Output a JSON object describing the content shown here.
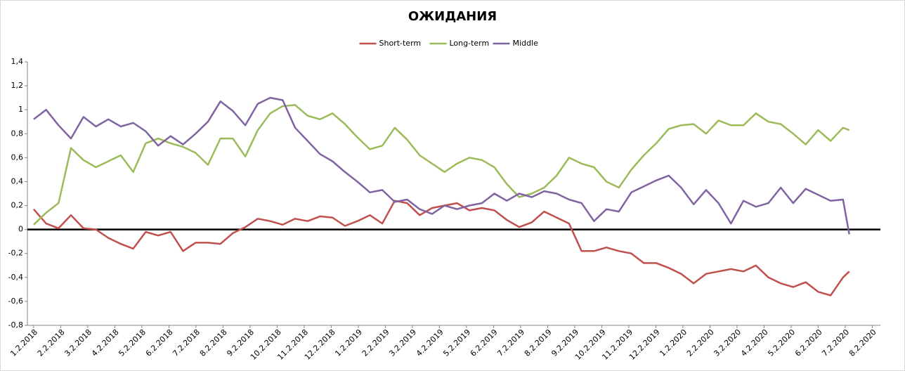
{
  "chart_data": {
    "type": "line",
    "title": "ОЖИДАНИЯ",
    "x": [
      0,
      2,
      4,
      6,
      8,
      10,
      12,
      14,
      16,
      18,
      20,
      22,
      24,
      26,
      28,
      30,
      32,
      34,
      36,
      38,
      40,
      42,
      44,
      46,
      48,
      50,
      52,
      54,
      56,
      58,
      60,
      62,
      64,
      66,
      68,
      70,
      72,
      74,
      76,
      78,
      80,
      82,
      84,
      86,
      88,
      90,
      92,
      94,
      96,
      98,
      100,
      102,
      104,
      106,
      108,
      110,
      112,
      114,
      116,
      118,
      120,
      122,
      124,
      126,
      128,
      130,
      131
    ],
    "series": [
      {
        "name": "Short-term",
        "color": "#c0504d",
        "values": [
          0.17,
          0.05,
          0.01,
          0.12,
          0.01,
          0.0,
          -0.07,
          -0.12,
          -0.16,
          -0.02,
          -0.05,
          -0.02,
          -0.18,
          -0.11,
          -0.11,
          -0.12,
          -0.03,
          0.02,
          0.09,
          0.07,
          0.04,
          0.09,
          0.07,
          0.11,
          0.1,
          0.03,
          0.07,
          0.12,
          0.05,
          0.24,
          0.22,
          0.12,
          0.18,
          0.2,
          0.22,
          0.16,
          0.18,
          0.16,
          0.08,
          0.02,
          0.06,
          0.15,
          0.1,
          0.05,
          -0.18,
          -0.18,
          -0.15,
          -0.18,
          -0.2,
          -0.28,
          -0.28,
          -0.32,
          -0.37,
          -0.45,
          -0.37,
          -0.35,
          -0.33,
          -0.35,
          -0.3,
          -0.4,
          -0.45,
          -0.48,
          -0.44,
          -0.52,
          -0.55,
          -0.4,
          -0.35
        ]
      },
      {
        "name": "Long-term",
        "color": "#9bbb59",
        "values": [
          0.04,
          0.14,
          0.22,
          0.68,
          0.58,
          0.52,
          0.57,
          0.62,
          0.48,
          0.72,
          0.76,
          0.72,
          0.69,
          0.64,
          0.54,
          0.76,
          0.76,
          0.61,
          0.83,
          0.97,
          1.03,
          1.04,
          0.95,
          0.92,
          0.97,
          0.88,
          0.77,
          0.67,
          0.7,
          0.85,
          0.75,
          0.62,
          0.55,
          0.48,
          0.55,
          0.6,
          0.58,
          0.52,
          0.38,
          0.27,
          0.3,
          0.35,
          0.45,
          0.6,
          0.55,
          0.52,
          0.4,
          0.35,
          0.5,
          0.62,
          0.72,
          0.84,
          0.87,
          0.88,
          0.8,
          0.91,
          0.87,
          0.87,
          0.97,
          0.9,
          0.88,
          0.8,
          0.71,
          0.83,
          0.74,
          0.85,
          0.83
        ]
      },
      {
        "name": "Middle",
        "color": "#8064a2",
        "values": [
          0.92,
          1.0,
          0.87,
          0.76,
          0.94,
          0.86,
          0.92,
          0.86,
          0.89,
          0.82,
          0.7,
          0.78,
          0.71,
          0.8,
          0.9,
          1.07,
          0.99,
          0.87,
          1.05,
          1.1,
          1.08,
          0.85,
          0.74,
          0.63,
          0.57,
          0.48,
          0.4,
          0.31,
          0.33,
          0.23,
          0.25,
          0.17,
          0.13,
          0.2,
          0.17,
          0.2,
          0.22,
          0.3,
          0.24,
          0.3,
          0.27,
          0.32,
          0.3,
          0.25,
          0.22,
          0.07,
          0.17,
          0.15,
          0.31,
          0.36,
          0.41,
          0.45,
          0.35,
          0.21,
          0.33,
          0.22,
          0.05,
          0.24,
          0.19,
          0.22,
          0.35,
          0.22,
          0.34,
          0.29,
          0.24,
          0.25,
          -0.04
        ]
      }
    ],
    "xlim": [
      -1,
      136
    ],
    "xticks": [
      {
        "value": 0,
        "label": "1.2.2018"
      },
      {
        "value": 4.35,
        "label": "2.2.2018"
      },
      {
        "value": 8.69,
        "label": "3.2.2018"
      },
      {
        "value": 13.04,
        "label": "4.2.2018"
      },
      {
        "value": 17.38,
        "label": "5.2.2018"
      },
      {
        "value": 21.73,
        "label": "6.2.2018"
      },
      {
        "value": 26.07,
        "label": "7.2.2018"
      },
      {
        "value": 30.42,
        "label": "8.2.2018"
      },
      {
        "value": 34.76,
        "label": "9.2.2018"
      },
      {
        "value": 39.11,
        "label": "10.2.2018"
      },
      {
        "value": 43.45,
        "label": "11.2.2018"
      },
      {
        "value": 47.8,
        "label": "12.2.2018"
      },
      {
        "value": 52.14,
        "label": "1.2.2019"
      },
      {
        "value": 56.49,
        "label": "2.2.2019"
      },
      {
        "value": 60.83,
        "label": "3.2.2019"
      },
      {
        "value": 65.18,
        "label": "4.2.2019"
      },
      {
        "value": 69.52,
        "label": "5.2.2019"
      },
      {
        "value": 73.87,
        "label": "6.2.2019"
      },
      {
        "value": 78.21,
        "label": "7.2.2019"
      },
      {
        "value": 82.56,
        "label": "8.2.2019"
      },
      {
        "value": 86.9,
        "label": "9.2.2019"
      },
      {
        "value": 91.25,
        "label": "10.2.2019"
      },
      {
        "value": 95.59,
        "label": "11.2.2019"
      },
      {
        "value": 99.94,
        "label": "12.2.2019"
      },
      {
        "value": 104.28,
        "label": "1.2.2020"
      },
      {
        "value": 108.63,
        "label": "2.2.2020"
      },
      {
        "value": 112.97,
        "label": "3.2.2020"
      },
      {
        "value": 117.32,
        "label": "4.2.2020"
      },
      {
        "value": 121.66,
        "label": "5.2.2020"
      },
      {
        "value": 126.01,
        "label": "6.2.2020"
      },
      {
        "value": 130.35,
        "label": "7.2.2020"
      },
      {
        "value": 134.7,
        "label": "8.2.2020"
      }
    ],
    "ylim": [
      -0.8,
      1.4
    ],
    "yticks": [
      {
        "value": -0.8,
        "label": "-0,8"
      },
      {
        "value": -0.6,
        "label": "-0,6"
      },
      {
        "value": -0.4,
        "label": "-0,4"
      },
      {
        "value": -0.2,
        "label": "-0,2"
      },
      0,
      {
        "value": 0.2,
        "label": "0,2"
      },
      {
        "value": 0.4,
        "label": "0,4"
      },
      {
        "value": 0.6,
        "label": "0,6"
      },
      {
        "value": 0.8,
        "label": "0,8"
      },
      1,
      {
        "value": 1.2,
        "label": "1,2"
      },
      {
        "value": 1.4,
        "label": "1,4"
      }
    ],
    "legend": "top"
  }
}
